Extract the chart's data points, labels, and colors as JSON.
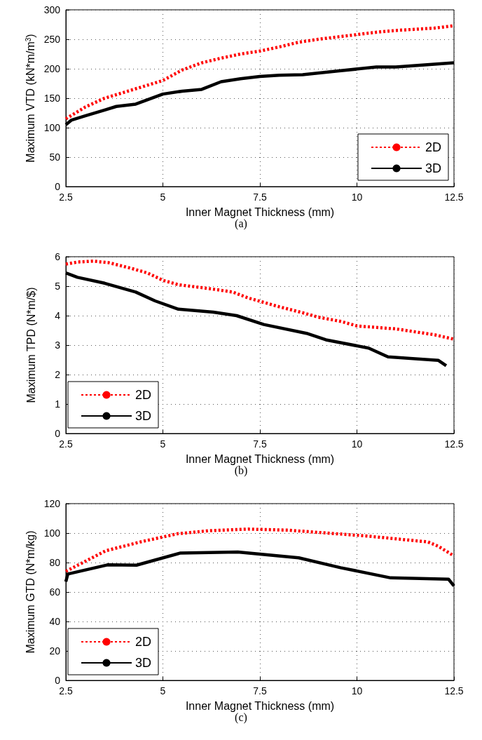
{
  "chart_data": [
    {
      "type": "line",
      "xlabel": "Inner Magnet Thickness (mm)",
      "ylabel": "Maximum VTD (kN*m/m$^{3}$)",
      "annotations": [
        "(a)"
      ],
      "xlim": [
        2.5,
        12.5
      ],
      "xticks": [
        2.5,
        5,
        7.5,
        10,
        12.5
      ],
      "ylim": [
        0,
        300
      ],
      "yticks": [
        0,
        50,
        100,
        150,
        200,
        250,
        300
      ],
      "grid": true,
      "legend": "bottom right",
      "series": [
        {
          "name": "2D",
          "color": "#ff0000",
          "line_style": "dashed",
          "x": [
            2.5,
            3,
            3.5,
            4,
            4.5,
            5,
            5.5,
            6,
            6.5,
            7,
            7.5,
            8,
            8.5,
            9,
            9.5,
            10,
            10.5,
            11,
            11.5,
            12,
            12.5
          ],
          "values": [
            115,
            135,
            150,
            160,
            170,
            180,
            198,
            210,
            218,
            225,
            230,
            237,
            245,
            250,
            254,
            258,
            262,
            265,
            267,
            269,
            273
          ]
        },
        {
          "name": "3D",
          "color": "#000000",
          "line_style": "solid",
          "x": [
            2.5,
            2.65,
            3,
            3.5,
            3.8,
            4.3,
            5,
            5.5,
            6,
            6.5,
            7,
            7.5,
            8,
            8.6,
            9.5,
            10.5,
            11,
            12.5
          ],
          "values": [
            105,
            113,
            120,
            130,
            136,
            140,
            157,
            162,
            165,
            178,
            183,
            187,
            189,
            190,
            196,
            203,
            203,
            210
          ]
        }
      ]
    },
    {
      "type": "line",
      "xlabel": "Inner Magnet Thickness (mm)",
      "ylabel": "Maximum TPD (N*m/$)",
      "annotations": [
        "(b)"
      ],
      "xlim": [
        2.5,
        12.5
      ],
      "xticks": [
        2.5,
        5,
        7.5,
        10,
        12.5
      ],
      "ylim": [
        0,
        6
      ],
      "yticks": [
        0,
        1,
        2,
        3,
        4,
        5,
        6
      ],
      "grid": true,
      "legend": "bottom left",
      "series": [
        {
          "name": "2D",
          "color": "#ff0000",
          "line_style": "dashed",
          "x": [
            2.5,
            2.8,
            3.2,
            3.6,
            4.2,
            4.6,
            5,
            5.4,
            6,
            6.4,
            6.8,
            7.2,
            7.6,
            8,
            8.6,
            9,
            9.6,
            10,
            10.5,
            11,
            11.5,
            12,
            12.5
          ],
          "values": [
            5.75,
            5.82,
            5.85,
            5.8,
            5.6,
            5.45,
            5.2,
            5.05,
            4.95,
            4.88,
            4.8,
            4.6,
            4.45,
            4.3,
            4.1,
            3.95,
            3.8,
            3.65,
            3.6,
            3.55,
            3.45,
            3.35,
            3.2
          ]
        },
        {
          "name": "3D",
          "color": "#000000",
          "line_style": "solid",
          "x": [
            2.5,
            2.8,
            3.5,
            4.3,
            4.8,
            5.4,
            6.3,
            6.9,
            7.6,
            8.7,
            9.2,
            10.3,
            10.8,
            12.1,
            12.3
          ],
          "values": [
            5.45,
            5.3,
            5.1,
            4.8,
            4.5,
            4.22,
            4.12,
            4.0,
            3.7,
            3.4,
            3.18,
            2.9,
            2.6,
            2.48,
            2.3
          ]
        }
      ]
    },
    {
      "type": "line",
      "xlabel": "Inner Magnet Thickness (mm)",
      "ylabel": "Maximum GTD (N*m/kg)",
      "annotations": [
        "(c)"
      ],
      "xlim": [
        2.5,
        12.5
      ],
      "xticks": [
        2.5,
        5,
        7.5,
        10,
        12.5
      ],
      "ylim": [
        0,
        120
      ],
      "yticks": [
        0,
        20,
        40,
        60,
        80,
        100,
        120
      ],
      "grid": true,
      "legend": "bottom left",
      "series": [
        {
          "name": "2D",
          "color": "#ff0000",
          "line_style": "dashed",
          "x": [
            2.5,
            3.53,
            4.42,
            5.37,
            6.18,
            7.2,
            8.22,
            9.24,
            10.26,
            11.83,
            12.1,
            12.47
          ],
          "values": [
            74,
            88,
            94,
            99.5,
            101.6,
            102.7,
            102,
            100,
            98,
            94,
            91,
            85
          ]
        },
        {
          "name": "3D",
          "color": "#000000",
          "line_style": "solid",
          "x": [
            2.5,
            2.55,
            3.57,
            4.32,
            5.44,
            6.93,
            8.5,
            9.58,
            10.87,
            12.36,
            12.5
          ],
          "values": [
            67,
            72.2,
            78.4,
            78.2,
            86.4,
            87.1,
            83.2,
            76.5,
            69.6,
            68.7,
            64.1
          ]
        }
      ]
    }
  ]
}
